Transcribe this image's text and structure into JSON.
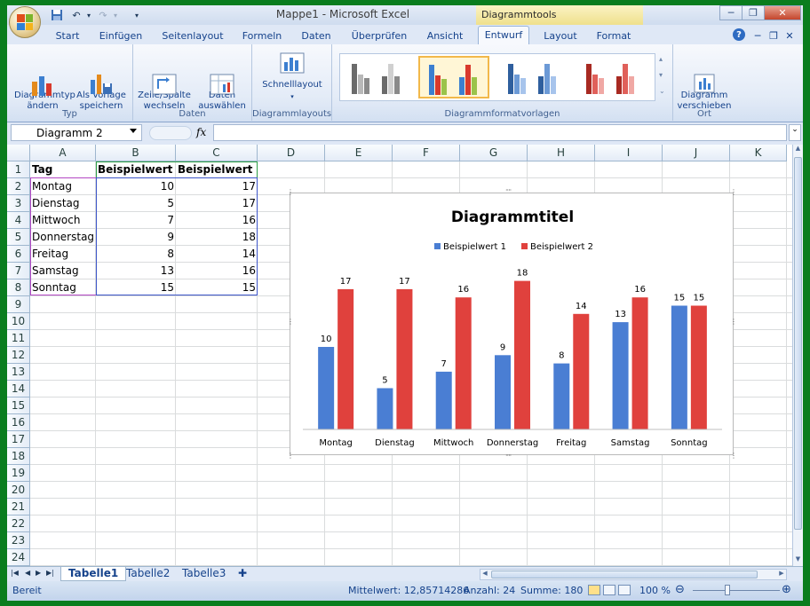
{
  "window": {
    "title": "Mappe1 - Microsoft Excel",
    "contextual_title": "Diagrammtools"
  },
  "ribbon_tabs": [
    {
      "label": "Start"
    },
    {
      "label": "Einfügen"
    },
    {
      "label": "Seitenlayout"
    },
    {
      "label": "Formeln"
    },
    {
      "label": "Daten"
    },
    {
      "label": "Überprüfen"
    },
    {
      "label": "Ansicht"
    },
    {
      "label": "Entwurf"
    },
    {
      "label": "Layout"
    },
    {
      "label": "Format"
    }
  ],
  "ribbon": {
    "typ": {
      "label": "Typ",
      "change_type": "Diagrammtyp\nändern",
      "save_template": "Als Vorlage\nspeichern"
    },
    "daten": {
      "label": "Daten",
      "switch": "Zeile/Spalte\nwechseln",
      "select": "Daten\nauswählen"
    },
    "layouts": {
      "label": "Diagrammlayouts",
      "quick": "Schnelllayout"
    },
    "styles": {
      "label": "Diagrammformatvorlagen"
    },
    "ort": {
      "label": "Ort",
      "move": "Diagramm\nverschieben"
    }
  },
  "formula_bar": {
    "name_box": "Diagramm 2",
    "fx": "fx",
    "formula": ""
  },
  "columns": [
    "A",
    "B",
    "C",
    "D",
    "E",
    "F",
    "G",
    "H",
    "I",
    "J",
    "K"
  ],
  "rows": [
    "1",
    "2",
    "3",
    "4",
    "5",
    "6",
    "7",
    "8",
    "9",
    "10",
    "11",
    "12",
    "13",
    "14",
    "15",
    "16",
    "17",
    "18",
    "19",
    "20",
    "21",
    "22",
    "23",
    "24"
  ],
  "table": {
    "headers": [
      "Tag",
      "Beispielwert 1",
      "Beispielwert 2"
    ],
    "rows": [
      [
        "Montag",
        "10",
        "17"
      ],
      [
        "Dienstag",
        "5",
        "17"
      ],
      [
        "Mittwoch",
        "7",
        "16"
      ],
      [
        "Donnerstag",
        "9",
        "18"
      ],
      [
        "Freitag",
        "8",
        "14"
      ],
      [
        "Samstag",
        "13",
        "16"
      ],
      [
        "Sonntag",
        "15",
        "15"
      ]
    ]
  },
  "chart_data": {
    "type": "bar",
    "title": "Diagrammtitel",
    "categories": [
      "Montag",
      "Dienstag",
      "Mittwoch",
      "Donnerstag",
      "Freitag",
      "Samstag",
      "Sonntag"
    ],
    "series": [
      {
        "name": "Beispielwert 1",
        "values": [
          10,
          5,
          7,
          9,
          8,
          13,
          15
        ],
        "color": "#4a7ed3"
      },
      {
        "name": "Beispielwert 2",
        "values": [
          17,
          17,
          16,
          18,
          14,
          16,
          15
        ],
        "color": "#e0413d"
      }
    ],
    "ylim": [
      0,
      20
    ],
    "legend": "top",
    "grid": false,
    "data_labels": true
  },
  "sheets": [
    {
      "label": "Tabelle1",
      "active": true
    },
    {
      "label": "Tabelle2",
      "active": false
    },
    {
      "label": "Tabelle3",
      "active": false
    }
  ],
  "status": {
    "ready": "Bereit",
    "mean": "Mittelwert: 12,85714286",
    "count": "Anzahl: 24",
    "sum": "Summe: 180",
    "zoom": "100 %"
  },
  "colors": {
    "accent": "#15428b",
    "selection": "#f2b84a"
  }
}
